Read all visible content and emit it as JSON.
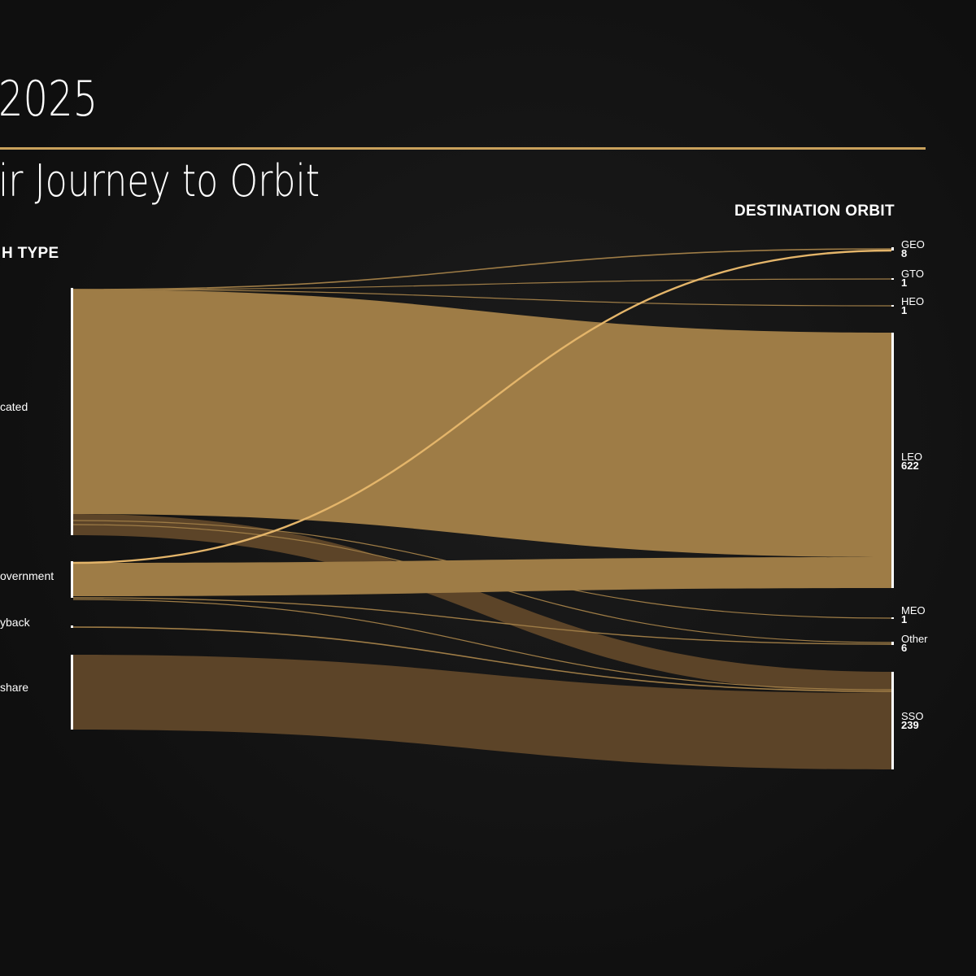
{
  "header": {
    "title": "2025",
    "subtitle": "ir Journey to Orbit",
    "left_column_title": "H TYPE",
    "right_column_title": "DESTINATION ORBIT"
  },
  "colors": {
    "background": "#111111",
    "accent_rule": "#c9a15c",
    "dedicated_flow": "#9e7c46",
    "rideshare_flow": "#5c4428",
    "geo_flow": "#e4b56a",
    "node_bar": "#ffffff"
  },
  "sources": [
    {
      "label": "cated"
    },
    {
      "label": "overnment"
    },
    {
      "label": "yback"
    },
    {
      "label": "share"
    }
  ],
  "destinations": [
    {
      "label": "GEO",
      "value": "8"
    },
    {
      "label": "GTO",
      "value": "1"
    },
    {
      "label": "HEO",
      "value": "1"
    },
    {
      "label": "LEO",
      "value": "622"
    },
    {
      "label": "MEO",
      "value": "1"
    },
    {
      "label": "Other",
      "value": "6"
    },
    {
      "label": "SSO",
      "value": "239"
    }
  ]
}
